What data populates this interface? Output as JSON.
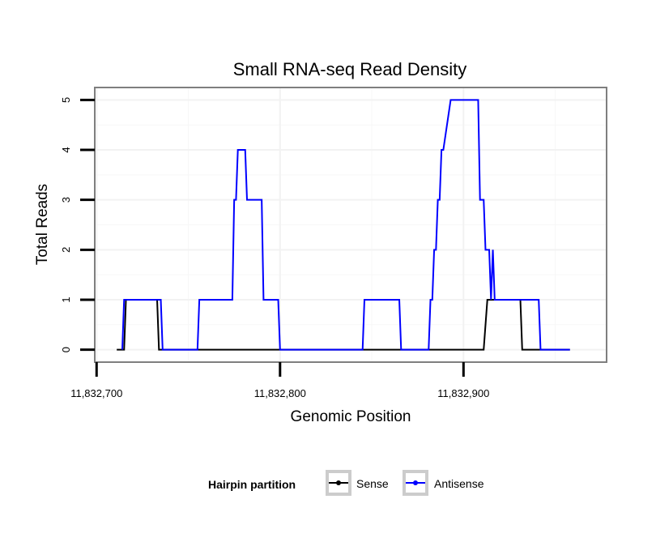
{
  "chart_data": {
    "type": "line",
    "title": "Small RNA-seq Read Density",
    "xlabel": "Genomic Position",
    "ylabel": "Total Reads",
    "xlim": [
      11832699,
      11832978
    ],
    "ylim": [
      -0.25,
      5.25
    ],
    "x_ticks": [
      11832700,
      11832800,
      11832900
    ],
    "x_tick_labels": [
      "11,832,700",
      "11,832,800",
      "11,832,900"
    ],
    "y_ticks": [
      0,
      1,
      2,
      3,
      4,
      5
    ],
    "y_tick_labels": [
      "0",
      "1",
      "2",
      "3",
      "4",
      "5"
    ],
    "grid": true,
    "legend": {
      "title": "Hairpin partition",
      "position": "bottom",
      "entries": [
        "Sense",
        "Antisense"
      ]
    },
    "series": [
      {
        "name": "Sense",
        "color": "#000000",
        "x": [
          11832711,
          11832715,
          11832716,
          11832733,
          11832734,
          11832911,
          11832913,
          11832931,
          11832932,
          11832958
        ],
        "y": [
          0,
          0,
          1,
          1,
          0,
          0,
          1,
          1,
          0,
          0
        ]
      },
      {
        "name": "Antisense",
        "color": "#0000ff",
        "x": [
          11832714,
          11832715,
          11832735,
          11832736,
          11832755,
          11832756,
          11832774,
          11832775,
          11832776,
          11832777,
          11832781,
          11832782,
          11832790,
          11832791,
          11832799,
          11832800,
          11832845,
          11832846,
          11832865,
          11832866,
          11832881,
          11832882,
          11832883,
          11832884,
          11832885,
          11832886,
          11832887,
          11832888,
          11832889,
          11832893,
          11832894,
          11832908,
          11832909,
          11832911,
          11832912,
          11832914,
          11832915,
          11832916,
          11832917,
          11832918,
          11832919,
          11832941,
          11832942,
          11832958
        ],
        "y": [
          0,
          1,
          1,
          0,
          0,
          1,
          1,
          3,
          3,
          4,
          4,
          3,
          3,
          1,
          1,
          0,
          0,
          1,
          1,
          0,
          0,
          1,
          1,
          2,
          2,
          3,
          3,
          4,
          4,
          5,
          5,
          5,
          3,
          3,
          2,
          2,
          1,
          2,
          1,
          1,
          1,
          1,
          0,
          0
        ]
      }
    ]
  }
}
